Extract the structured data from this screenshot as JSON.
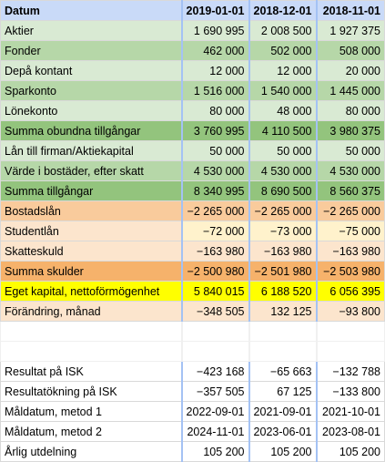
{
  "columns": [
    "Datum",
    "2019-01-01",
    "2018-12-01",
    "2018-11-01"
  ],
  "colors": {
    "header": "#c9daf8",
    "green_light": "#d9ead3",
    "green_mid": "#b6d7a8",
    "green_dark": "#93c47d",
    "orange_light": "#fce5cd",
    "orange_mid": "#f9cb9c",
    "orange_dark": "#f6b26b",
    "yellow_pale": "#fff2cc",
    "yellow": "#ffff00",
    "white": "#ffffff"
  },
  "rows": [
    {
      "label": "Aktier",
      "values": [
        "1 690 995",
        "2 008 500",
        "1 927 375"
      ],
      "bg": "#d9ead3"
    },
    {
      "label": "Fonder",
      "values": [
        "462 000",
        "502 000",
        "508 000"
      ],
      "bg": "#b6d7a8"
    },
    {
      "label": "Depå kontant",
      "values": [
        "12 000",
        "12 000",
        "20 000"
      ],
      "bg": "#d9ead3"
    },
    {
      "label": "Sparkonto",
      "values": [
        "1 516 000",
        "1 540 000",
        "1 445 000"
      ],
      "bg": "#b6d7a8"
    },
    {
      "label": "Lönekonto",
      "values": [
        "80 000",
        "48 000",
        "80 000"
      ],
      "bg": "#d9ead3"
    },
    {
      "label": "Summa obundna tillgångar",
      "values": [
        "3 760 995",
        "4 110 500",
        "3 980 375"
      ],
      "bg": "#93c47d"
    },
    {
      "label": "Lån till firman/Aktiekapital",
      "values": [
        "50 000",
        "50 000",
        "50 000"
      ],
      "bg": "#d9ead3"
    },
    {
      "label": "Värde i bostäder, efter skatt",
      "values": [
        "4 530 000",
        "4 530 000",
        "4 530 000"
      ],
      "bg": "#b6d7a8"
    },
    {
      "label": "Summa tillgångar",
      "values": [
        "8 340 995",
        "8 690 500",
        "8 560 375"
      ],
      "bg": "#93c47d"
    },
    {
      "label": "Bostadslån",
      "values": [
        "−2 265 000",
        "−2 265 000",
        "−2 265 000"
      ],
      "bg": "#f9cb9c"
    },
    {
      "label": "Studentlån",
      "values": [
        "−72 000",
        "−73 000",
        "−75 000"
      ],
      "bg": "#fce5cd",
      "value_bg": "#fff2cc"
    },
    {
      "label": "Skatteskuld",
      "values": [
        "−163 980",
        "−163 980",
        "−163 980"
      ],
      "bg": "#fce5cd"
    },
    {
      "label": "Summa skulder",
      "values": [
        "−2 500 980",
        "−2 501 980",
        "−2 503 980"
      ],
      "bg": "#f6b26b"
    },
    {
      "label": "Eget kapital, nettoförmögenhet",
      "values": [
        "5 840 015",
        "6 188 520",
        "6 056 395"
      ],
      "bg": "#ffff00"
    },
    {
      "label": "Förändring, månad",
      "values": [
        "−348 505",
        "132 125",
        "−93 800"
      ],
      "bg": "#fce5cd"
    },
    {
      "label": "",
      "values": [
        "",
        "",
        ""
      ],
      "bg": "#ffffff",
      "empty": true
    },
    {
      "label": "",
      "values": [
        "",
        "",
        ""
      ],
      "bg": "#ffffff",
      "empty": true
    },
    {
      "label": "Resultat på ISK",
      "values": [
        "−423 168",
        "−65 663",
        "−132 788"
      ],
      "bg": "#ffffff"
    },
    {
      "label": "Resultatökning på ISK",
      "values": [
        "−357 505",
        "67 125",
        "−133 800"
      ],
      "bg": "#ffffff"
    },
    {
      "label": "Måldatum, metod 1",
      "values": [
        "2022-09-01",
        "2021-09-01",
        "2021-10-01"
      ],
      "bg": "#ffffff"
    },
    {
      "label": "Måldatum, metod 2",
      "values": [
        "2024-11-01",
        "2023-06-01",
        "2023-08-01"
      ],
      "bg": "#ffffff"
    },
    {
      "label": "Årlig utdelning",
      "values": [
        "105 200",
        "105 200",
        "105 200"
      ],
      "bg": "#ffffff"
    }
  ]
}
